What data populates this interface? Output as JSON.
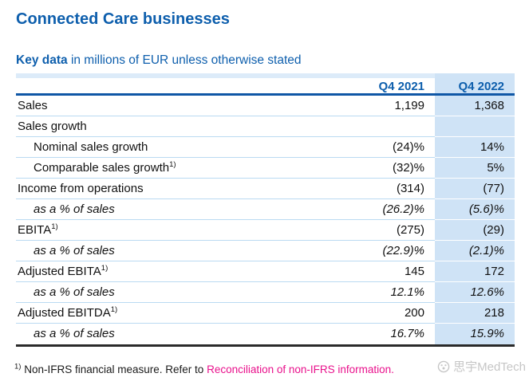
{
  "header": {
    "title": "Connected Care businesses",
    "caption_bold": "Key data",
    "caption_rest": "in millions of EUR unless otherwise stated"
  },
  "table": {
    "columns": [
      "Q4 2021",
      "Q4 2022"
    ],
    "rows": [
      {
        "label": "Sales",
        "sup": "",
        "indent": false,
        "italic": false,
        "q4_2021": "1,199",
        "q4_2022": "1,368"
      },
      {
        "label": "Sales growth",
        "sup": "",
        "indent": false,
        "italic": false,
        "q4_2021": "",
        "q4_2022": ""
      },
      {
        "label": "Nominal sales growth",
        "sup": "",
        "indent": true,
        "italic": false,
        "q4_2021": "(24)%",
        "q4_2022": "14%"
      },
      {
        "label": "Comparable sales growth",
        "sup": "1)",
        "indent": true,
        "italic": false,
        "q4_2021": "(32)%",
        "q4_2022": "5%"
      },
      {
        "label": "Income from operations",
        "sup": "",
        "indent": false,
        "italic": false,
        "q4_2021": "(314)",
        "q4_2022": "(77)"
      },
      {
        "label": "as a % of sales",
        "sup": "",
        "indent": true,
        "italic": true,
        "q4_2021": "(26.2)%",
        "q4_2022": "(5.6)%"
      },
      {
        "label": "EBITA",
        "sup": "1)",
        "indent": false,
        "italic": false,
        "q4_2021": "(275)",
        "q4_2022": "(29)"
      },
      {
        "label": "as a % of sales",
        "sup": "",
        "indent": true,
        "italic": true,
        "q4_2021": "(22.9)%",
        "q4_2022": "(2.1)%"
      },
      {
        "label": "Adjusted EBITA",
        "sup": "1)",
        "indent": false,
        "italic": false,
        "q4_2021": "145",
        "q4_2022": "172"
      },
      {
        "label": "as a % of sales",
        "sup": "",
        "indent": true,
        "italic": true,
        "q4_2021": "12.1%",
        "q4_2022": "12.6%"
      },
      {
        "label": "Adjusted EBITDA",
        "sup": "1)",
        "indent": false,
        "italic": false,
        "q4_2021": "200",
        "q4_2022": "218"
      },
      {
        "label": "as a % of sales",
        "sup": "",
        "indent": true,
        "italic": true,
        "q4_2021": "16.7%",
        "q4_2022": "15.9%"
      }
    ]
  },
  "footnote": {
    "sup": "1)",
    "text": "Non-IFRS financial measure. Refer to",
    "link_text": "Reconciliation of non-IFRS information."
  },
  "watermark": {
    "icon": "circle-logo-icon",
    "text": "思宇MedTech"
  },
  "colors": {
    "title_blue": "#0e5fad",
    "header_rule_blue": "#0f57a6",
    "column_band_blue": "#cfe3f6",
    "header_strip_blue": "#dcebf9",
    "row_separator_blue": "#badaf2",
    "bottom_rule_dark": "#2a2a2a",
    "footnote_link_magenta": "#e9118c",
    "watermark_gray": "#c6c6c6"
  }
}
